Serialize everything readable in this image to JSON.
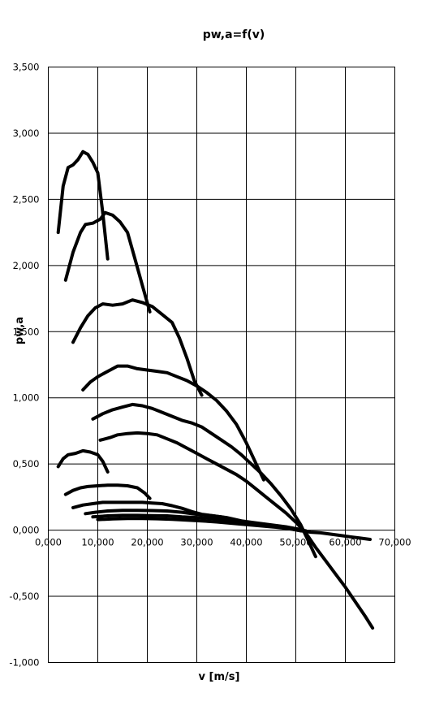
{
  "chart_data": {
    "type": "line",
    "title": "pw,a=f(v)",
    "xlabel": "v [m/s]",
    "ylabel": "pw,a",
    "xlim": [
      0,
      70000
    ],
    "ylim": [
      -1000,
      3500
    ],
    "x_ticks": [
      "0,000",
      "10,000",
      "20,000",
      "30,000",
      "40,000",
      "50,000",
      "60,000",
      "70,000"
    ],
    "y_ticks": [
      "-1,000",
      "-0,500",
      "0,000",
      "0,500",
      "1,000",
      "1,500",
      "2,000",
      "2,500",
      "3,000",
      "3,500"
    ],
    "grid": true,
    "legend": "none",
    "series": [
      {
        "points": [
          [
            2000,
            2250
          ],
          [
            3000,
            2600
          ],
          [
            4000,
            2740
          ],
          [
            5000,
            2760
          ],
          [
            6000,
            2800
          ],
          [
            7000,
            2860
          ],
          [
            8000,
            2840
          ],
          [
            9000,
            2780
          ],
          [
            10000,
            2700
          ],
          [
            11000,
            2400
          ],
          [
            12000,
            2050
          ]
        ]
      },
      {
        "points": [
          [
            3500,
            1890
          ],
          [
            5000,
            2100
          ],
          [
            6500,
            2250
          ],
          [
            7500,
            2310
          ],
          [
            9000,
            2320
          ],
          [
            10500,
            2350
          ],
          [
            11500,
            2400
          ],
          [
            13000,
            2380
          ],
          [
            14500,
            2330
          ],
          [
            16000,
            2250
          ],
          [
            17500,
            2050
          ],
          [
            19000,
            1850
          ],
          [
            20500,
            1650
          ]
        ]
      },
      {
        "points": [
          [
            5000,
            1420
          ],
          [
            6500,
            1530
          ],
          [
            8000,
            1620
          ],
          [
            9500,
            1680
          ],
          [
            11000,
            1710
          ],
          [
            13000,
            1700
          ],
          [
            15000,
            1710
          ],
          [
            17000,
            1740
          ],
          [
            19000,
            1720
          ],
          [
            21000,
            1690
          ],
          [
            23000,
            1630
          ],
          [
            25000,
            1570
          ],
          [
            26500,
            1450
          ],
          [
            28000,
            1300
          ],
          [
            29500,
            1130
          ],
          [
            31000,
            1020
          ]
        ]
      },
      {
        "points": [
          [
            7000,
            1060
          ],
          [
            8500,
            1120
          ],
          [
            10000,
            1160
          ],
          [
            12000,
            1200
          ],
          [
            14000,
            1240
          ],
          [
            16000,
            1240
          ],
          [
            18000,
            1220
          ],
          [
            20000,
            1210
          ],
          [
            22000,
            1200
          ],
          [
            24000,
            1190
          ],
          [
            26000,
            1160
          ],
          [
            28000,
            1130
          ],
          [
            30000,
            1090
          ],
          [
            32000,
            1040
          ],
          [
            34000,
            980
          ],
          [
            36000,
            900
          ],
          [
            38000,
            800
          ],
          [
            40000,
            660
          ],
          [
            42000,
            500
          ],
          [
            43500,
            380
          ]
        ]
      },
      {
        "points": [
          [
            9000,
            840
          ],
          [
            11000,
            880
          ],
          [
            13000,
            910
          ],
          [
            15000,
            930
          ],
          [
            17000,
            950
          ],
          [
            19000,
            940
          ],
          [
            21000,
            920
          ],
          [
            23000,
            890
          ],
          [
            25000,
            860
          ],
          [
            27000,
            830
          ],
          [
            29000,
            810
          ],
          [
            31000,
            780
          ],
          [
            33000,
            730
          ],
          [
            35000,
            680
          ],
          [
            37000,
            630
          ],
          [
            39000,
            570
          ],
          [
            41000,
            500
          ],
          [
            43000,
            430
          ],
          [
            45000,
            350
          ],
          [
            47000,
            260
          ],
          [
            49000,
            160
          ],
          [
            51000,
            40
          ],
          [
            52500,
            -80
          ],
          [
            54000,
            -200
          ]
        ]
      },
      {
        "points": [
          [
            10500,
            680
          ],
          [
            12500,
            700
          ],
          [
            14000,
            720
          ],
          [
            16000,
            730
          ],
          [
            18000,
            735
          ],
          [
            20000,
            730
          ],
          [
            22000,
            720
          ],
          [
            24000,
            690
          ],
          [
            26000,
            660
          ],
          [
            28000,
            620
          ],
          [
            30000,
            580
          ],
          [
            32000,
            540
          ],
          [
            34000,
            500
          ],
          [
            36000,
            460
          ],
          [
            38000,
            420
          ],
          [
            40000,
            370
          ],
          [
            42000,
            310
          ],
          [
            44000,
            250
          ],
          [
            46000,
            190
          ],
          [
            48000,
            130
          ],
          [
            50000,
            60
          ],
          [
            52000,
            -20
          ],
          [
            54000,
            -130
          ],
          [
            56000,
            -230
          ],
          [
            58000,
            -330
          ],
          [
            60000,
            -430
          ],
          [
            62000,
            -540
          ],
          [
            64000,
            -650
          ],
          [
            65500,
            -740
          ]
        ]
      },
      {
        "points": [
          [
            2000,
            480
          ],
          [
            3000,
            540
          ],
          [
            4000,
            570
          ],
          [
            5500,
            580
          ],
          [
            7000,
            600
          ],
          [
            8500,
            590
          ],
          [
            10000,
            570
          ],
          [
            11000,
            520
          ],
          [
            12000,
            440
          ]
        ]
      },
      {
        "points": [
          [
            3500,
            270
          ],
          [
            5000,
            300
          ],
          [
            6500,
            320
          ],
          [
            8000,
            330
          ],
          [
            10000,
            335
          ],
          [
            12000,
            340
          ],
          [
            14000,
            340
          ],
          [
            16000,
            335
          ],
          [
            18000,
            320
          ],
          [
            19500,
            280
          ],
          [
            20500,
            240
          ]
        ]
      },
      {
        "points": [
          [
            5000,
            170
          ],
          [
            7000,
            190
          ],
          [
            9000,
            200
          ],
          [
            11000,
            210
          ],
          [
            13000,
            210
          ],
          [
            15000,
            210
          ],
          [
            17000,
            210
          ],
          [
            19000,
            210
          ],
          [
            21000,
            205
          ],
          [
            23000,
            200
          ],
          [
            25000,
            185
          ],
          [
            27000,
            165
          ],
          [
            29000,
            140
          ],
          [
            31000,
            120
          ],
          [
            33000,
            110
          ],
          [
            35000,
            100
          ],
          [
            37000,
            85
          ],
          [
            39000,
            65
          ],
          [
            41000,
            50
          ],
          [
            43000,
            40
          ],
          [
            45000,
            30
          ],
          [
            47000,
            20
          ],
          [
            49000,
            10
          ],
          [
            51000,
            -5
          ],
          [
            53000,
            -15
          ],
          [
            55000,
            -20
          ],
          [
            57000,
            -30
          ],
          [
            59000,
            -40
          ],
          [
            61000,
            -50
          ],
          [
            63000,
            -60
          ],
          [
            65000,
            -70
          ]
        ]
      },
      {
        "points": [
          [
            7500,
            125
          ],
          [
            9500,
            135
          ],
          [
            12000,
            145
          ],
          [
            15000,
            150
          ],
          [
            18000,
            150
          ],
          [
            21000,
            148
          ],
          [
            24000,
            145
          ],
          [
            27000,
            135
          ],
          [
            30000,
            120
          ],
          [
            33000,
            110
          ],
          [
            36000,
            95
          ],
          [
            39000,
            70
          ],
          [
            42000,
            55
          ],
          [
            45000,
            40
          ],
          [
            48000,
            25
          ],
          [
            51000,
            5
          ]
        ]
      },
      {
        "points": [
          [
            9000,
            100
          ],
          [
            12000,
            108
          ],
          [
            15000,
            112
          ],
          [
            18000,
            112
          ],
          [
            21000,
            110
          ],
          [
            24000,
            108
          ],
          [
            27000,
            100
          ],
          [
            30000,
            95
          ],
          [
            33000,
            88
          ],
          [
            36000,
            75
          ],
          [
            39000,
            60
          ],
          [
            42000,
            45
          ],
          [
            45000,
            30
          ],
          [
            48000,
            15
          ],
          [
            51000,
            -5
          ]
        ]
      },
      {
        "points": [
          [
            10000,
            80
          ],
          [
            13000,
            85
          ],
          [
            16000,
            88
          ],
          [
            19000,
            88
          ],
          [
            22000,
            86
          ],
          [
            25000,
            82
          ],
          [
            28000,
            76
          ],
          [
            31000,
            70
          ],
          [
            34000,
            62
          ],
          [
            37000,
            52
          ],
          [
            40000,
            42
          ],
          [
            43000,
            32
          ],
          [
            46000,
            22
          ],
          [
            49000,
            10
          ],
          [
            52000,
            -5
          ]
        ]
      }
    ]
  }
}
